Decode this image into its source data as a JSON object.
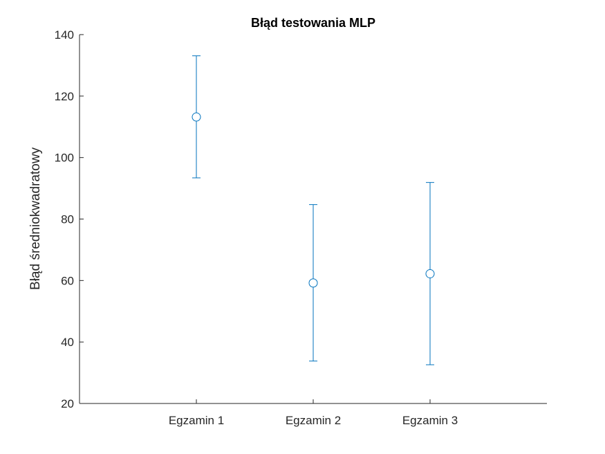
{
  "chart_data": {
    "type": "scatter",
    "title": "Błąd testowania MLP",
    "xlabel": "",
    "ylabel": "Błąd średniokwadratowy",
    "categories": [
      "Egzamin 1",
      "Egzamin 2",
      "Egzamin 3"
    ],
    "series": [
      {
        "values": [
          113.2,
          59.2,
          62.2
        ],
        "error_lower": [
          93.4,
          33.8,
          32.6
        ],
        "error_upper": [
          133.1,
          84.7,
          91.9
        ]
      }
    ],
    "ylim": [
      20,
      140
    ],
    "yticks": [
      20,
      40,
      60,
      80,
      100,
      120,
      140
    ],
    "grid": false,
    "marker": "circle-open",
    "colors": {
      "series": "#0072BD",
      "axis": "#262626",
      "title": "#000000"
    }
  }
}
